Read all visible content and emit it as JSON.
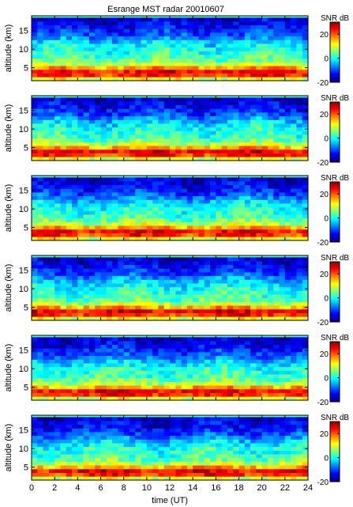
{
  "chart_data": {
    "type": "heatmap",
    "title": "Esrange MST radar 20010607",
    "xlabel": "time (UT)",
    "ylabel": "altitude (km)",
    "xlim": [
      0,
      24
    ],
    "ylim": [
      1.5,
      19
    ],
    "x_ticks": [
      0,
      2,
      4,
      6,
      8,
      10,
      12,
      14,
      16,
      18,
      20,
      22,
      24
    ],
    "y_ticks": [
      5,
      10,
      15
    ],
    "colorbar": {
      "label": "SNR dB",
      "range": [
        -20,
        30
      ],
      "ticks": [
        -20,
        0,
        20
      ],
      "colormap": "jet"
    },
    "time_step_hours": 0.5,
    "altitude_step_km": 1.0,
    "panels": [
      {
        "name": "panel-1",
        "seed": 11
      },
      {
        "name": "panel-2",
        "seed": 23
      },
      {
        "name": "panel-3",
        "seed": 37
      },
      {
        "name": "panel-4",
        "seed": 41
      },
      {
        "name": "panel-5",
        "seed": 53
      },
      {
        "name": "panel-6",
        "seed": 67
      }
    ],
    "snr_profile_db": [
      {
        "alt": 2,
        "snr": 10
      },
      {
        "alt": 3,
        "snr": 22
      },
      {
        "alt": 4,
        "snr": 24
      },
      {
        "alt": 5,
        "snr": 16
      },
      {
        "alt": 6,
        "snr": 8
      },
      {
        "alt": 7,
        "snr": 4
      },
      {
        "alt": 8,
        "snr": 2
      },
      {
        "alt": 9,
        "snr": 1
      },
      {
        "alt": 10,
        "snr": 0
      },
      {
        "alt": 11,
        "snr": -2
      },
      {
        "alt": 12,
        "snr": -4
      },
      {
        "alt": 13,
        "snr": -7
      },
      {
        "alt": 14,
        "snr": -10
      },
      {
        "alt": 15,
        "snr": -12
      },
      {
        "alt": 16,
        "snr": -14
      },
      {
        "alt": 17,
        "snr": -15
      },
      {
        "alt": 18,
        "snr": -16
      }
    ]
  }
}
